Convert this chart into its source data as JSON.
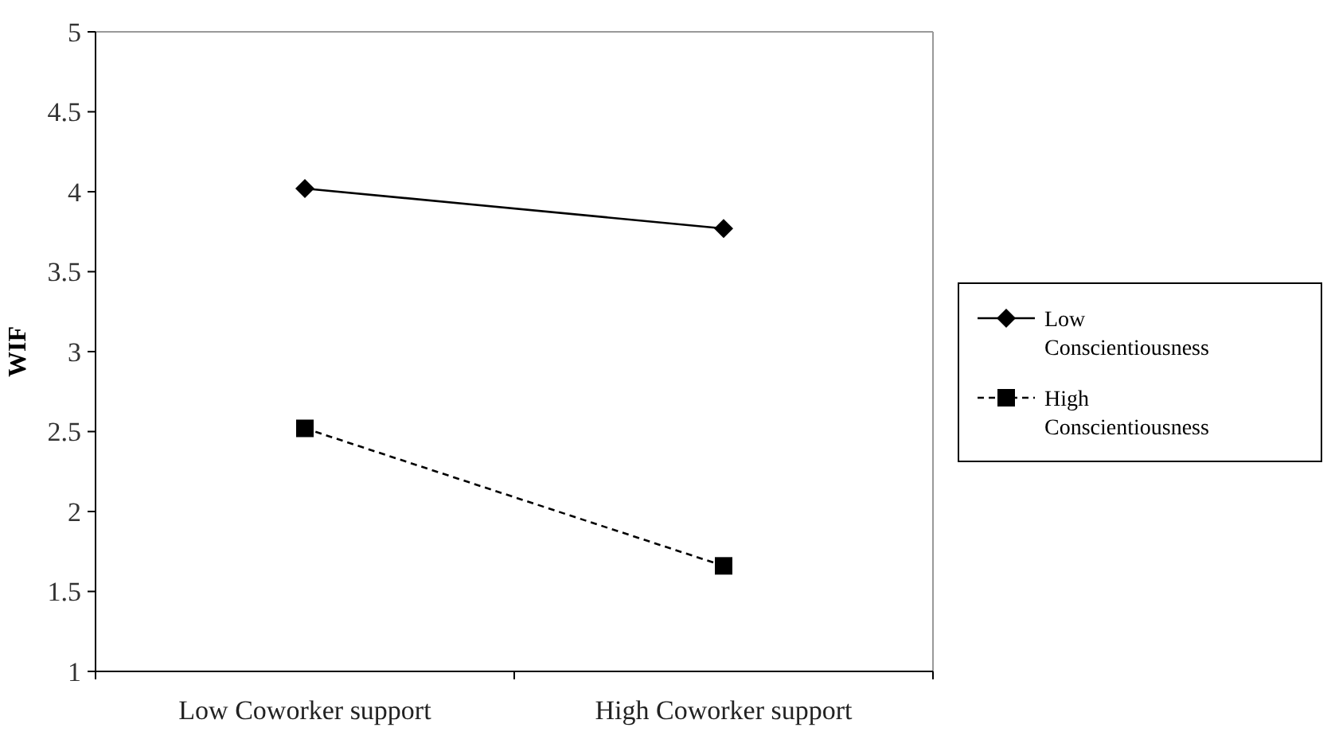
{
  "chart_data": {
    "type": "line",
    "ylabel": "WIF",
    "categories": [
      "Low Coworker support",
      "High Coworker support"
    ],
    "series": [
      {
        "name": "Low Conscientiousness",
        "color": "#000000",
        "values": [
          4.02,
          3.77
        ],
        "marker": "diamond",
        "line_style": "solid"
      },
      {
        "name": "High Conscientiousness",
        "color": "#000000",
        "values": [
          2.52,
          1.66
        ],
        "marker": "square",
        "line_style": "dashed"
      }
    ],
    "ylim": [
      1,
      5
    ],
    "yticks": [
      1,
      1.5,
      2,
      2.5,
      3,
      3.5,
      4,
      4.5,
      5
    ],
    "grid": false,
    "legend": "right"
  }
}
